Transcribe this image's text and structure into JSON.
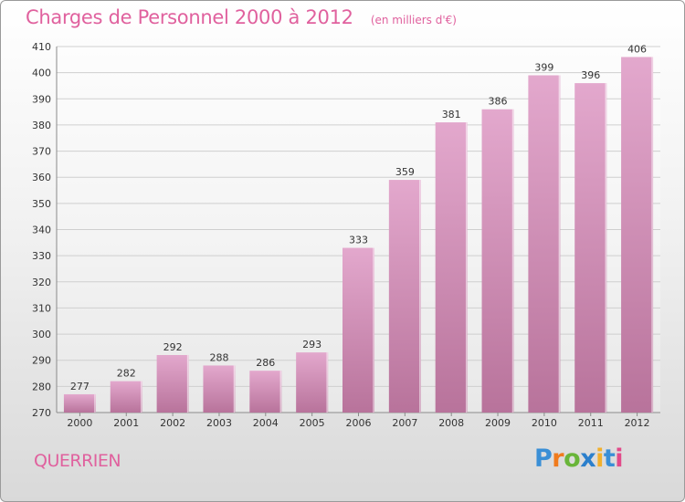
{
  "header": {
    "title": "Charges de Personnel 2000 à 2012",
    "subtitle": "(en milliers d'€)"
  },
  "footer": {
    "place": "QUERRIEN",
    "logo_letters": [
      "P",
      "r",
      "o",
      "x",
      "i",
      "t",
      "i"
    ],
    "logo_colors": [
      "#3a8fd6",
      "#f07b1d",
      "#69b539",
      "#2b7fcc",
      "#f2b02c",
      "#3a8fd6",
      "#e24a8a"
    ]
  },
  "colors": {
    "bar_top": "#e3a8cd",
    "bar_bottom": "#b8739b",
    "title": "#e0619e",
    "grid": "#cfcfcf",
    "axis": "#8a8a8a"
  },
  "chart_data": {
    "type": "bar",
    "title": "Charges de Personnel 2000 à 2012",
    "subtitle": "(en milliers d'€)",
    "categories": [
      "2000",
      "2001",
      "2002",
      "2003",
      "2004",
      "2005",
      "2006",
      "2007",
      "2008",
      "2009",
      "2010",
      "2011",
      "2012"
    ],
    "values": [
      277,
      282,
      292,
      288,
      286,
      293,
      333,
      359,
      381,
      386,
      399,
      396,
      406
    ],
    "ylim": [
      270,
      410
    ],
    "yticks": [
      270,
      280,
      290,
      300,
      310,
      320,
      330,
      340,
      350,
      360,
      370,
      380,
      390,
      400,
      410
    ],
    "grid": true,
    "xlabel": "",
    "ylabel": ""
  }
}
